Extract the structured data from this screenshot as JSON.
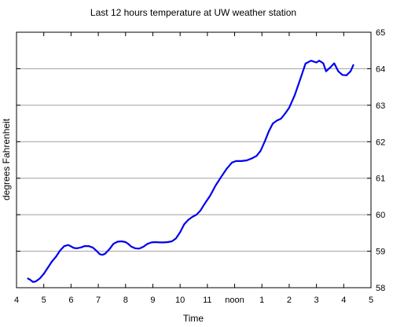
{
  "chart_data": {
    "type": "line",
    "title": "Last 12 hours temperature at UW weather station",
    "xlabel": "Time",
    "ylabel": "degrees Fahrenheit",
    "x_ticks": [
      "4",
      "5",
      "6",
      "7",
      "8",
      "9",
      "10",
      "11",
      "noon",
      "1",
      "2",
      "3",
      "4",
      "5"
    ],
    "y_ticks": [
      "58",
      "59",
      "60",
      "61",
      "62",
      "63",
      "64",
      "65"
    ],
    "xlim": [
      4,
      17
    ],
    "ylim": [
      58,
      65
    ],
    "grid": "horizontal",
    "line_color": "#0000ee",
    "series": [
      {
        "x": [
          4.42,
          4.5,
          4.6,
          4.7,
          4.85,
          5.0,
          5.15,
          5.3,
          5.45,
          5.6,
          5.75,
          5.9,
          6.0,
          6.1,
          6.2,
          6.35,
          6.5,
          6.65,
          6.8,
          6.95,
          7.05,
          7.15,
          7.25,
          7.4,
          7.55,
          7.7,
          7.85,
          8.0,
          8.1,
          8.2,
          8.35,
          8.5,
          8.65,
          8.8,
          8.95,
          9.1,
          9.25,
          9.4,
          9.55,
          9.7,
          9.85,
          10.0,
          10.15,
          10.3,
          10.45,
          10.6,
          10.75,
          10.9,
          11.1,
          11.3,
          11.5,
          11.7,
          11.9,
          12.05,
          12.25,
          12.45,
          12.65,
          12.8,
          12.95,
          13.1,
          13.25,
          13.4,
          13.55,
          13.7,
          13.85,
          14.0,
          14.2,
          14.4,
          14.6,
          14.8,
          15.0,
          15.1,
          15.25,
          15.35,
          15.5,
          15.65,
          15.8,
          15.95,
          16.1,
          16.25,
          16.35
        ],
        "y": [
          58.25,
          58.22,
          58.16,
          58.17,
          58.25,
          58.38,
          58.55,
          58.72,
          58.85,
          59.02,
          59.14,
          59.17,
          59.13,
          59.09,
          59.08,
          59.1,
          59.14,
          59.14,
          59.1,
          59.0,
          58.92,
          58.9,
          58.93,
          59.05,
          59.2,
          59.26,
          59.27,
          59.25,
          59.2,
          59.13,
          59.08,
          59.07,
          59.12,
          59.2,
          59.24,
          59.25,
          59.24,
          59.24,
          59.25,
          59.27,
          59.35,
          59.52,
          59.74,
          59.86,
          59.94,
          60.0,
          60.12,
          60.3,
          60.52,
          60.8,
          61.03,
          61.25,
          61.43,
          61.47,
          61.47,
          61.49,
          61.55,
          61.61,
          61.75,
          62.0,
          62.28,
          62.5,
          62.58,
          62.63,
          62.77,
          62.93,
          63.27,
          63.7,
          64.14,
          64.22,
          64.17,
          64.22,
          64.15,
          63.93,
          64.03,
          64.15,
          63.93,
          63.83,
          63.82,
          63.93,
          64.1
        ]
      }
    ]
  }
}
